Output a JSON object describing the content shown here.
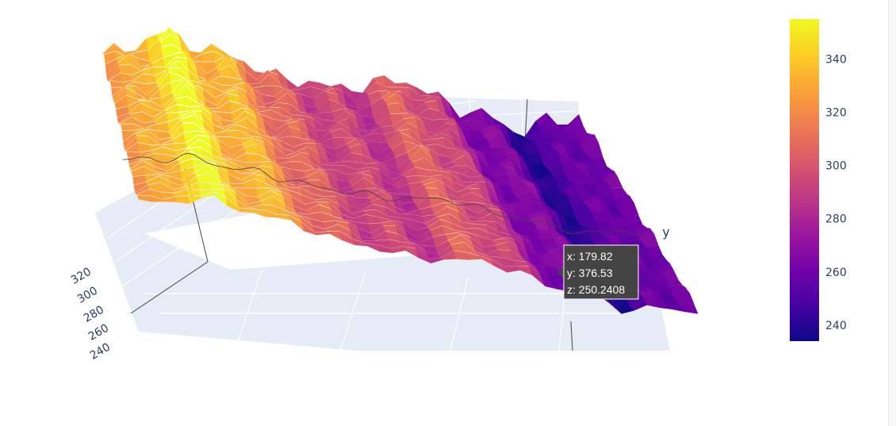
{
  "chart_data": {
    "type": "surface",
    "title": "",
    "colorscale": [
      "#0d0887",
      "#46039f",
      "#7201a8",
      "#9c179e",
      "#bd3786",
      "#d8576b",
      "#ed7953",
      "#fb9f3a",
      "#fdca26",
      "#f0f921"
    ],
    "z_range": [
      234,
      355
    ],
    "colorbar": {
      "ticks": [
        240,
        260,
        280,
        300,
        320,
        340
      ]
    },
    "axes": {
      "y": {
        "title": "y"
      },
      "z_ticks_visible": [
        "240",
        "260",
        "280",
        "300",
        "320"
      ]
    },
    "hover": {
      "x_label": "x: 179.82",
      "y_label": "y: 376.53",
      "z_label": "z: 250.2408"
    },
    "surface_profile": {
      "description_free": true,
      "ridge_count": 9,
      "ridge_values": [
        318,
        352,
        330,
        300,
        290,
        305,
        270,
        245,
        268
      ],
      "scene_background": "#e5ecf6",
      "grid_color": "#ffffff"
    }
  }
}
